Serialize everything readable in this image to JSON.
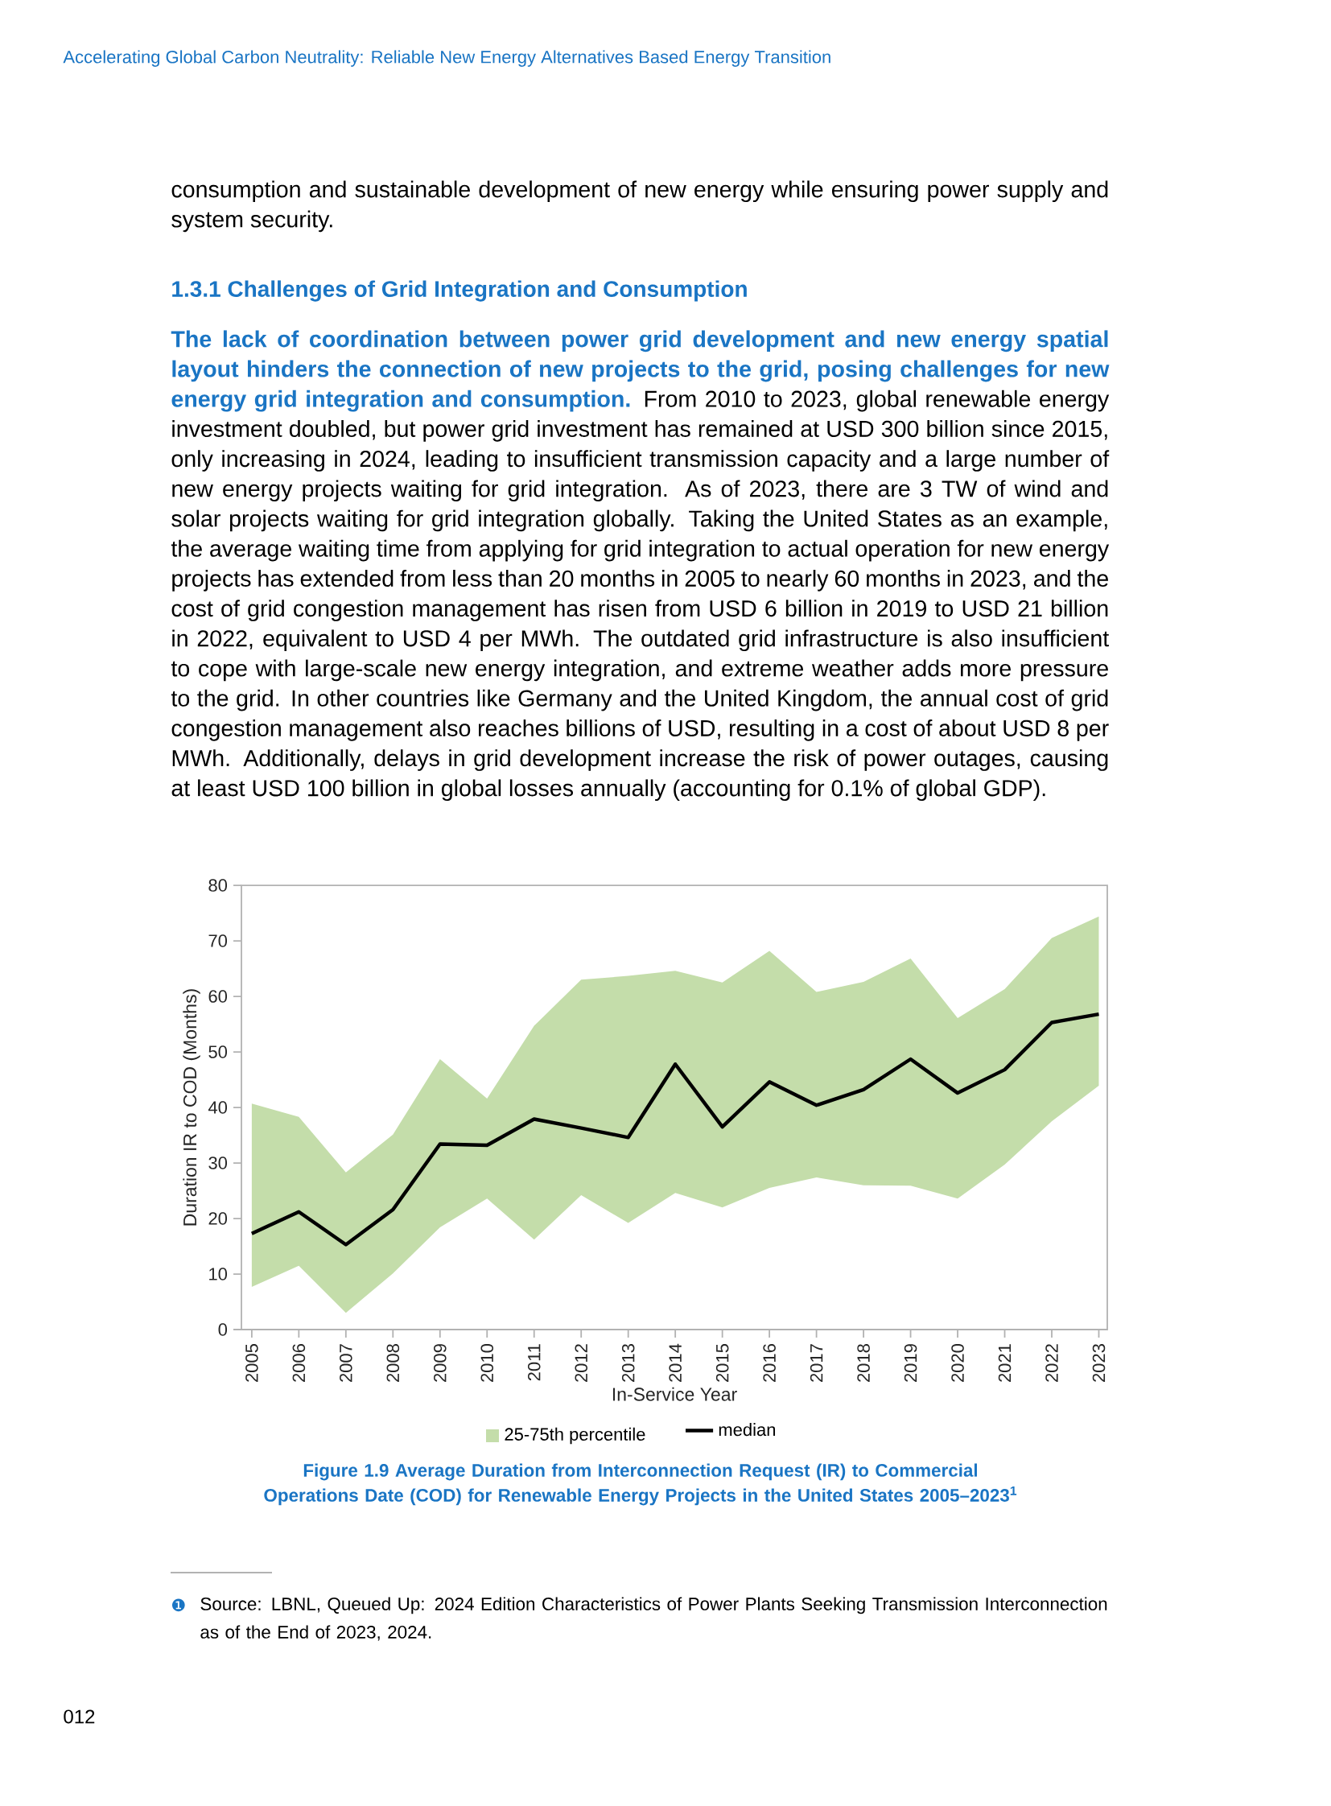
{
  "chart_data": {
    "type": "line",
    "title": "Figure 1.9 Average Duration from Interconnection Request (IR) to Commercial Operations Date (COD) for Renewable Energy Projects in the United States 2005–2023$^{1}$",
    "xlabel": "In-Service Year",
    "ylabel": "Duration IR to COD (Months)",
    "categories": [
      "2005",
      "2006",
      "2007",
      "2008",
      "2009",
      "2010",
      "2011",
      "2012",
      "2013",
      "2014",
      "2015",
      "2016",
      "2017",
      "2018",
      "2019",
      "2020",
      "2021",
      "2022",
      "2023"
    ],
    "series": [
      {
        "name": "median",
        "color": "#000000",
        "values": [
          17.3,
          21.2,
          15.3,
          21.6,
          33.4,
          33.2,
          37.9,
          36.3,
          34.6,
          47.8,
          36.5,
          44.6,
          40.4,
          43.2,
          48.7,
          42.6,
          46.8,
          55.3,
          56.8
        ],
        "lower": [
          7.7,
          11.5,
          3.0,
          10.1,
          18.4,
          23.6,
          16.2,
          24.2,
          19.2,
          24.6,
          22.0,
          25.5,
          27.4,
          26.0,
          25.9,
          23.6,
          29.7,
          37.5,
          43.9
        ],
        "upper": [
          40.7,
          38.3,
          28.3,
          35.1,
          48.7,
          41.6,
          54.7,
          63.0,
          63.7,
          64.6,
          62.5,
          68.2,
          60.8,
          62.6,
          66.8,
          56.1,
          61.3,
          70.5,
          74.4
        ]
      }
    ],
    "ylim": [
      0,
      80
    ],
    "yticks": [
      0,
      10,
      20,
      30,
      40,
      50,
      60,
      70,
      80
    ],
    "legend": "bottom",
    "marker": "none",
    "line_style": "solid",
    "annotations": [
      "Accelerating Global Carbon Neutrality: Reliable New Energy Alternatives Based Energy Transition",
      "consumption and sustainable development of new energy while ensuring power supply and system security.",
      "1.3.1 Challenges of Grid Integration and Consumption",
      "The lack of coordination between power grid development and new energy spatial layout hinders the connection of new projects to the grid, posing challenges for new energy grid integration and consumption.",
      "From 2010 to 2023, global renewable energy investment doubled, but power grid investment has remained at USD 300 billion since 2015, only increasing in 2024, leading to insufficient transmission capacity and a large number of new energy projects waiting for grid integration. As of 2023, there are 3 TW of wind and solar projects waiting for grid integration globally. Taking the United States as an example, the average waiting time from applying for grid integration to actual operation for new energy projects has extended from less than 20 months in 2005 to nearly 60 months in 2023, and the cost of grid congestion management has risen from USD 6 billion in 2019 to USD 21 billion in 2022, equivalent to USD 4 per MWh. The outdated grid infrastructure is also insufficient to cope with large-scale new energy integration, and extreme weather adds more pressure to the grid. In other countries like Germany and the United Kingdom, the annual cost of grid congestion management also reaches billions of USD, resulting in a cost of about USD 8 per MWh. Additionally, delays in grid development increase the risk of power outages, causing at least USD 100 billion in global losses annually (accounting for 0.1% of global GDP).",
      "❶",
      "Source: LBNL, Queued Up: 2024 Edition Characteristics of Power Plants Seeking Transmission Interconnection as of the End of 2023, 2024.",
      "012",
      "25-75th percentile"
    ]
  }
}
